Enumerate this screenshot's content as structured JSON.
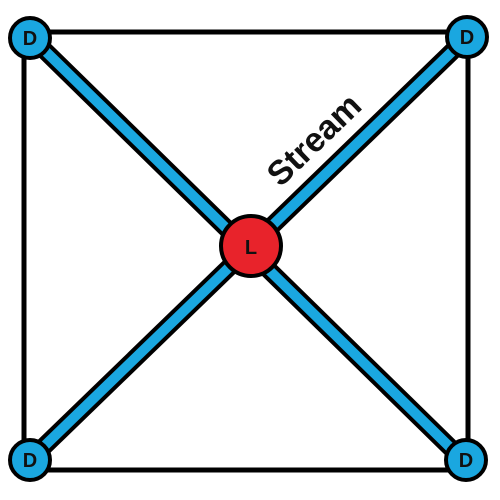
{
  "diagram": {
    "colors": {
      "border": "#000000",
      "stream": "#1AA7E0",
      "leader_fill": "#E8232B",
      "dependent_fill": "#1AA7E0",
      "text": "#111111"
    },
    "center_node": {
      "label": "L"
    },
    "corner_nodes": [
      {
        "label": "D"
      },
      {
        "label": "D"
      },
      {
        "label": "D"
      },
      {
        "label": "D"
      }
    ],
    "stream_label": "Stream"
  }
}
